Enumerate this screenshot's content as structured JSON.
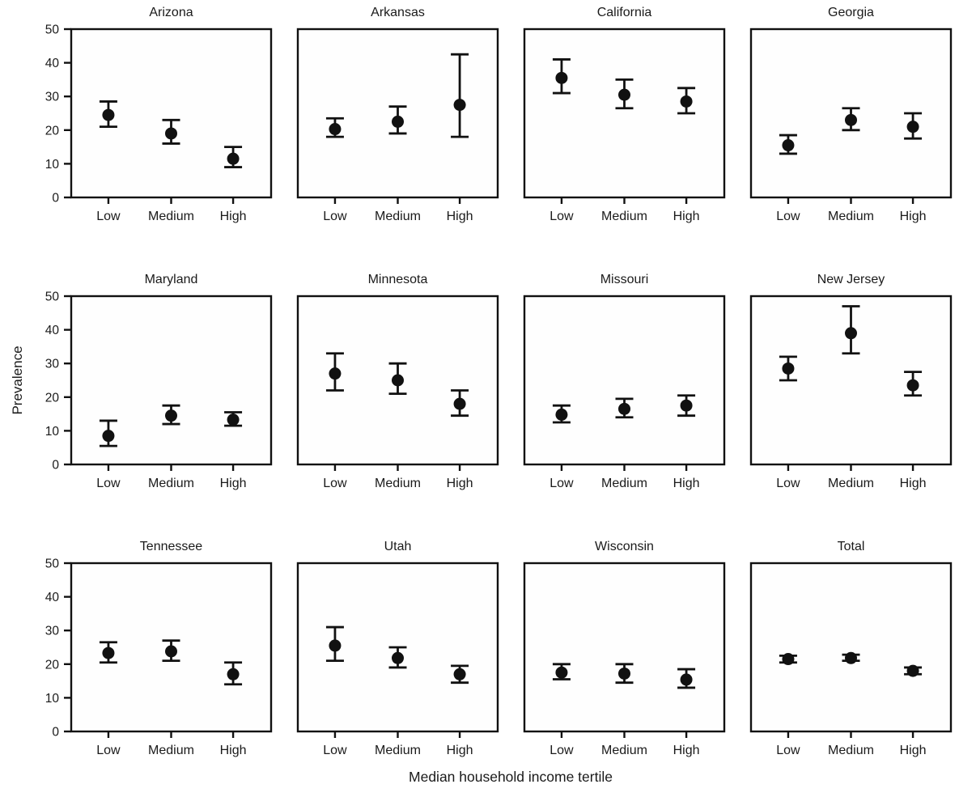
{
  "figure": {
    "ylabel": "Prevalence",
    "xlabel": "Median household income tertile"
  },
  "chart_data": {
    "type": "scatter",
    "layout": "small-multiples-3x4",
    "categories": [
      "Low",
      "Medium",
      "High"
    ],
    "xlabel": "Median household income tertile",
    "ylabel": "Prevalence",
    "ylim": [
      0,
      50
    ],
    "yticks": [
      0,
      10,
      20,
      30,
      40,
      50
    ],
    "error_bars": "95% CI",
    "marker_color": "#111111",
    "background_color": "#ffffff",
    "panels": [
      {
        "title": "Arizona",
        "values": [
          24.5,
          19.0,
          11.5
        ],
        "ci_low": [
          21.0,
          16.0,
          9.0
        ],
        "ci_high": [
          28.5,
          23.0,
          15.0
        ]
      },
      {
        "title": "Arkansas",
        "values": [
          20.3,
          22.5,
          27.5
        ],
        "ci_low": [
          18.0,
          19.0,
          18.0
        ],
        "ci_high": [
          23.5,
          27.0,
          42.5
        ]
      },
      {
        "title": "California",
        "values": [
          35.5,
          30.5,
          28.5
        ],
        "ci_low": [
          31.0,
          26.5,
          25.0
        ],
        "ci_high": [
          41.0,
          35.0,
          32.5
        ]
      },
      {
        "title": "Georgia",
        "values": [
          15.5,
          23.0,
          21.0
        ],
        "ci_low": [
          13.0,
          20.0,
          17.5
        ],
        "ci_high": [
          18.5,
          26.5,
          25.0
        ]
      },
      {
        "title": "Maryland",
        "values": [
          8.5,
          14.5,
          13.3
        ],
        "ci_low": [
          5.5,
          12.0,
          11.5
        ],
        "ci_high": [
          13.0,
          17.5,
          15.5
        ]
      },
      {
        "title": "Minnesota",
        "values": [
          27.0,
          25.0,
          18.0
        ],
        "ci_low": [
          22.0,
          21.0,
          14.5
        ],
        "ci_high": [
          33.0,
          30.0,
          22.0
        ]
      },
      {
        "title": "Missouri",
        "values": [
          14.8,
          16.5,
          17.5
        ],
        "ci_low": [
          12.5,
          14.0,
          14.5
        ],
        "ci_high": [
          17.5,
          19.5,
          20.5
        ]
      },
      {
        "title": "New Jersey",
        "values": [
          28.5,
          39.0,
          23.5
        ],
        "ci_low": [
          25.0,
          33.0,
          20.5
        ],
        "ci_high": [
          32.0,
          47.0,
          27.5
        ]
      },
      {
        "title": "Tennessee",
        "values": [
          23.3,
          23.8,
          17.0
        ],
        "ci_low": [
          20.5,
          21.0,
          14.0
        ],
        "ci_high": [
          26.5,
          27.0,
          20.5
        ]
      },
      {
        "title": "Utah",
        "values": [
          25.5,
          21.8,
          17.0
        ],
        "ci_low": [
          21.0,
          19.0,
          14.5
        ],
        "ci_high": [
          31.0,
          25.0,
          19.5
        ]
      },
      {
        "title": "Wisconsin",
        "values": [
          17.5,
          17.2,
          15.4
        ],
        "ci_low": [
          15.5,
          14.5,
          13.0
        ],
        "ci_high": [
          20.0,
          20.0,
          18.5
        ]
      },
      {
        "title": "Total",
        "values": [
          21.5,
          21.8,
          18.0
        ],
        "ci_low": [
          20.5,
          21.0,
          17.0
        ],
        "ci_high": [
          22.5,
          22.8,
          19.0
        ]
      }
    ]
  }
}
